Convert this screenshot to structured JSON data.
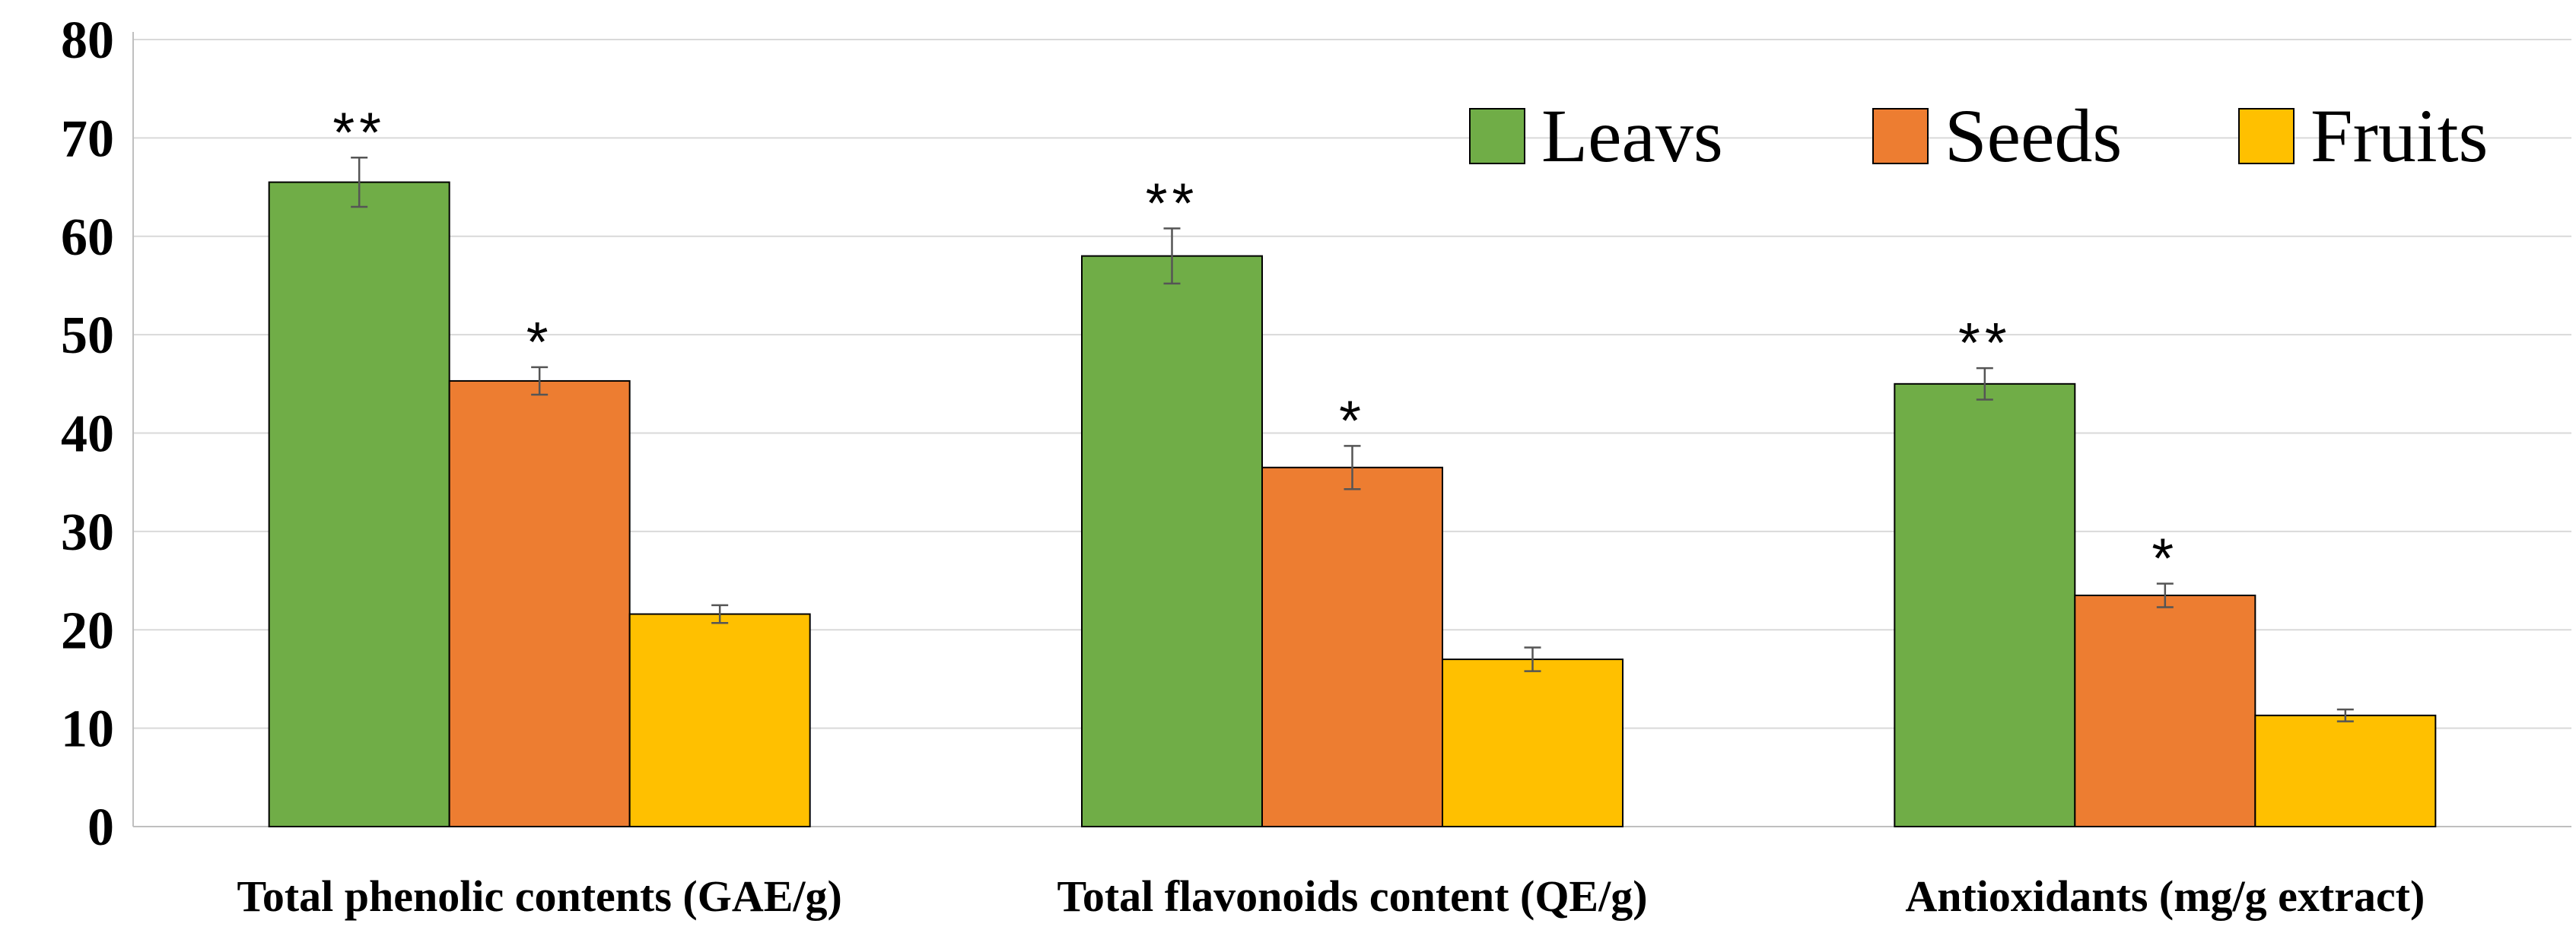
{
  "chart_data": {
    "type": "bar",
    "title": "",
    "xlabel": "",
    "ylabel": "",
    "ylim": [
      0,
      80
    ],
    "yticks": [
      0,
      10,
      20,
      30,
      40,
      50,
      60,
      70,
      80
    ],
    "grid": true,
    "legend_position": "top-right",
    "categories": [
      "Total phenolic contents  (GAE/g)",
      "Total flavonoids content (QE/g)",
      "Antioxidants (mg/g extract)"
    ],
    "series": [
      {
        "name": "Leavs",
        "color": "#70ad47",
        "values": [
          65.5,
          58,
          45
        ],
        "errors": [
          2.5,
          2.8,
          1.6
        ],
        "significance": [
          "**",
          "**",
          "**"
        ]
      },
      {
        "name": "Seeds",
        "color": "#ed7d31",
        "values": [
          45.3,
          36.5,
          23.5
        ],
        "errors": [
          1.4,
          2.2,
          1.2
        ],
        "significance": [
          "*",
          "*",
          "*"
        ]
      },
      {
        "name": "Fruits",
        "color": "#ffc000",
        "values": [
          21.6,
          17,
          11.3
        ],
        "errors": [
          0.9,
          1.2,
          0.6
        ],
        "significance": [
          "",
          "",
          ""
        ]
      }
    ]
  }
}
